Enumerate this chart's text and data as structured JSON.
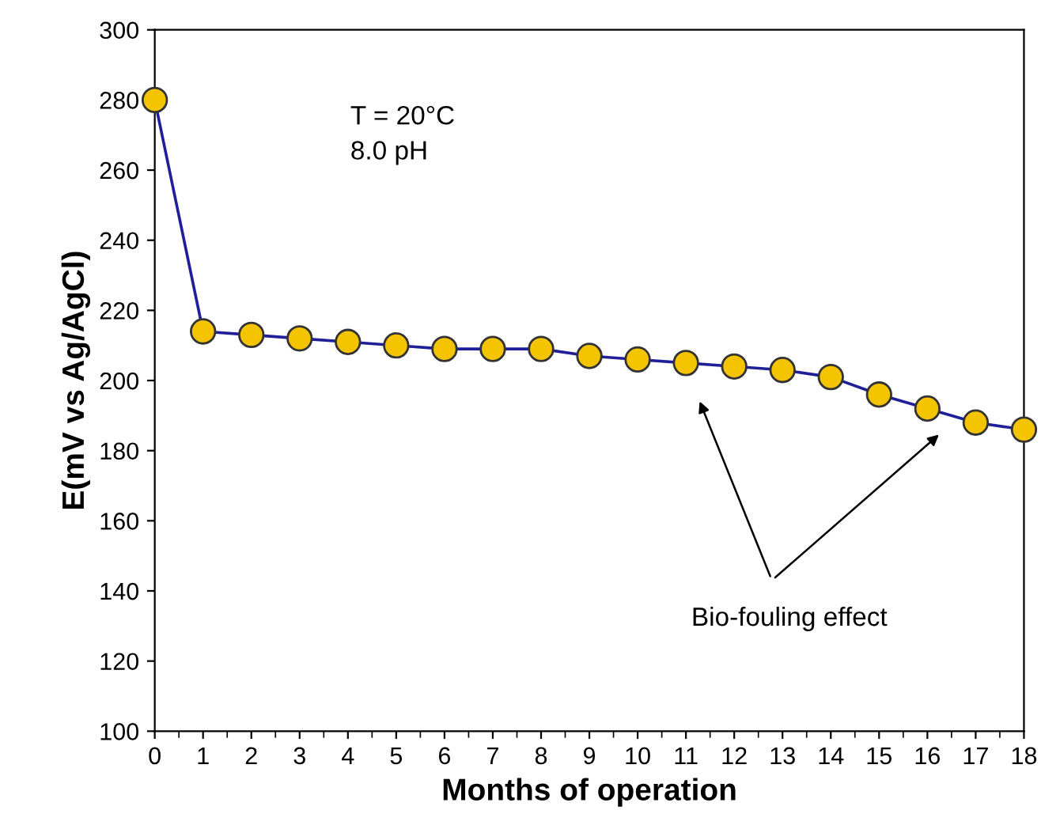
{
  "chart_data": {
    "type": "line",
    "xlabel": "Months of operation",
    "ylabel": "E(mV vs Ag/AgCl)",
    "x": [
      0,
      1,
      2,
      3,
      4,
      5,
      6,
      7,
      8,
      9,
      10,
      11,
      12,
      13,
      14,
      15,
      16,
      17,
      18
    ],
    "series": [
      {
        "color": "#1f1f9a",
        "values": [
          280,
          214,
          213,
          212,
          211,
          210,
          209,
          209,
          209,
          207,
          206,
          205,
          204,
          203,
          201,
          196,
          192,
          188,
          186
        ]
      }
    ],
    "marker": "circle",
    "line_style": "solid",
    "grid": false,
    "xlim": [
      0,
      18
    ],
    "xticks": [
      0,
      1,
      2,
      3,
      4,
      5,
      6,
      7,
      8,
      9,
      10,
      11,
      12,
      13,
      14,
      15,
      16,
      17,
      18
    ],
    "ylim": [
      100,
      300
    ],
    "yticks": [
      100,
      120,
      140,
      160,
      180,
      200,
      220,
      240,
      260,
      280,
      300
    ],
    "annotations": [
      "T = 20°C",
      "8.0 pH",
      "Bio-fouling effect"
    ]
  }
}
